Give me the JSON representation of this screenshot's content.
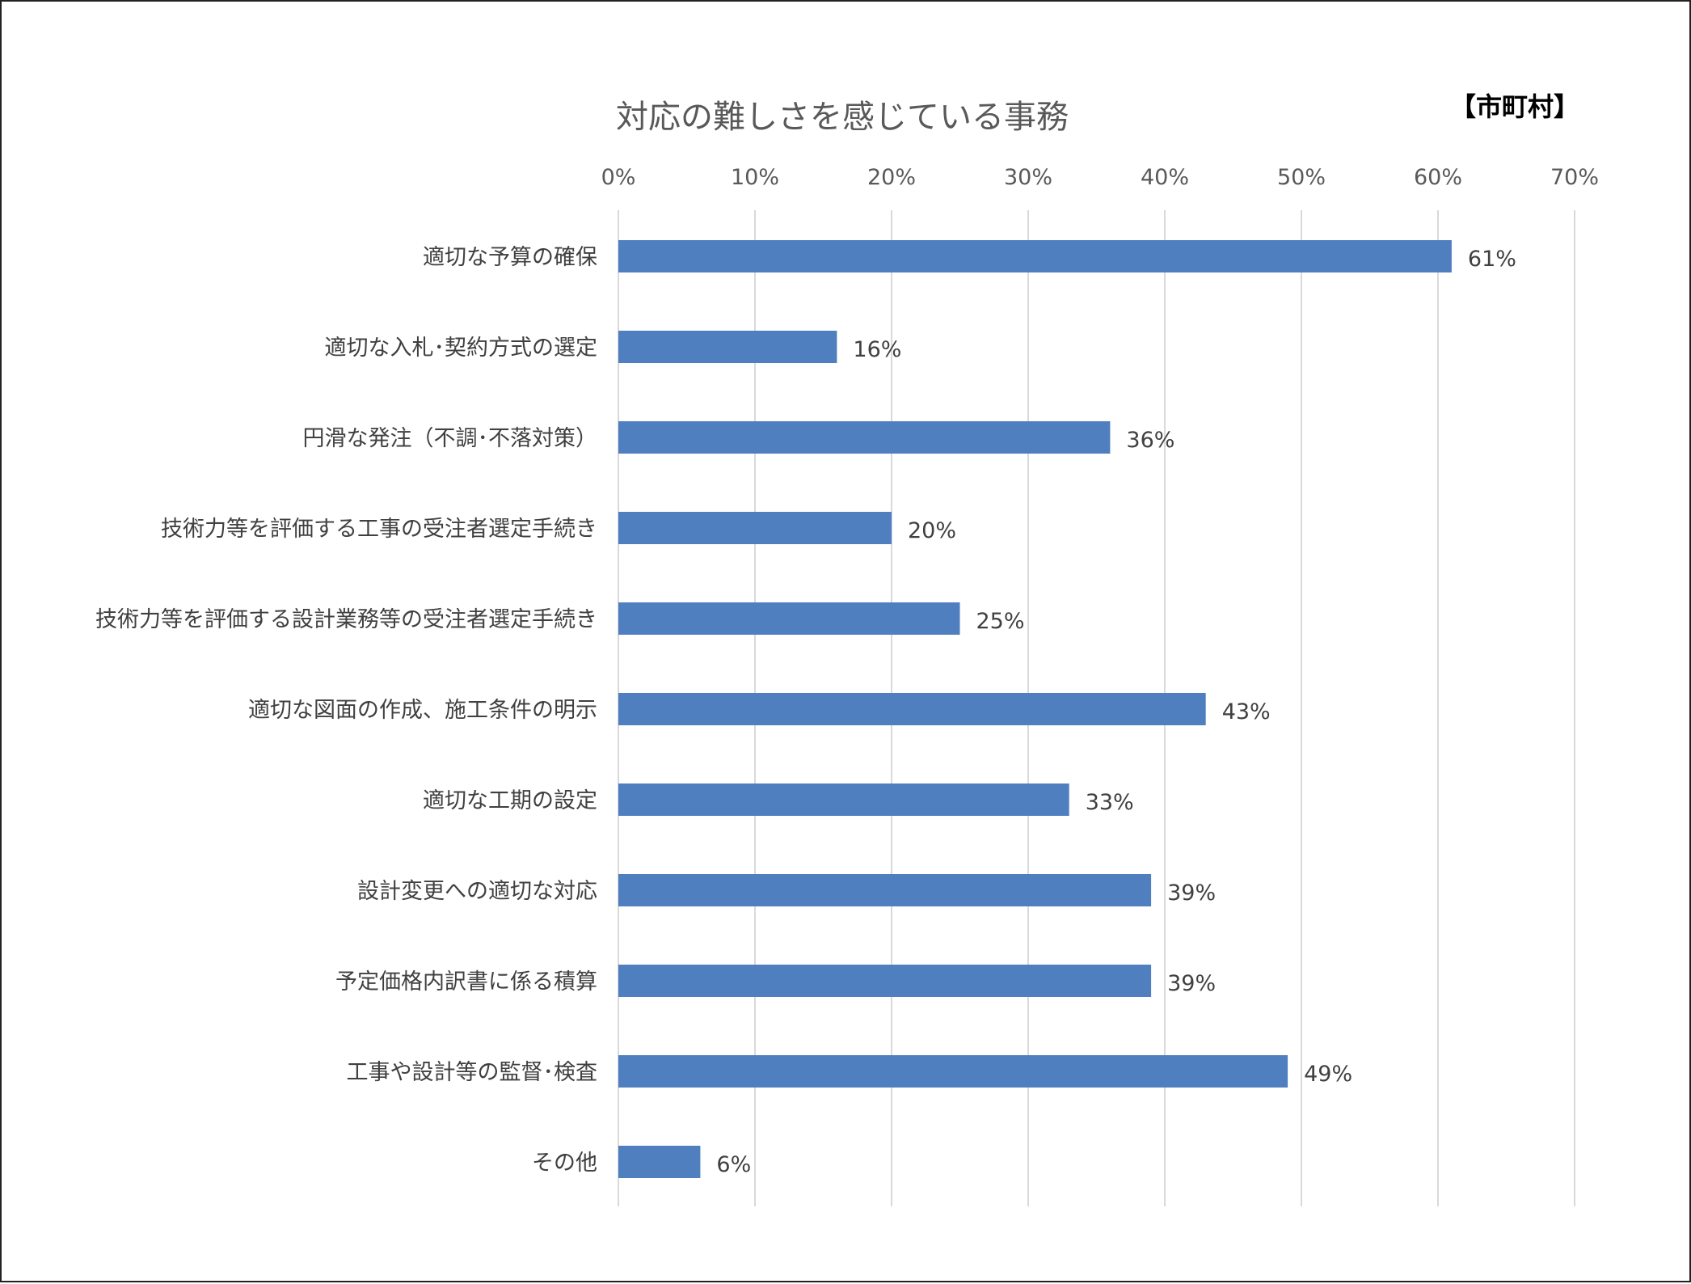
{
  "chart_data": {
    "type": "bar",
    "orientation": "horizontal",
    "title": "対応の難しさを感じている事務",
    "tag": "【市町村】",
    "categories": [
      "適切な予算の確保",
      "適切な入札･契約方式の選定",
      "円滑な発注（不調･不落対策）",
      "技術力等を評価する工事の受注者選定手続き",
      "技術力等を評価する設計業務等の受注者選定手続き",
      "適切な図面の作成、施工条件の明示",
      "適切な工期の設定",
      "設計変更への適切な対応",
      "予定価格内訳書に係る積算",
      "工事や設計等の監督･検査",
      "その他"
    ],
    "values": [
      61,
      16,
      36,
      20,
      25,
      43,
      33,
      39,
      39,
      49,
      6
    ],
    "data_labels": [
      "61%",
      "16%",
      "36%",
      "20%",
      "25%",
      "43%",
      "33%",
      "39%",
      "39%",
      "49%",
      "6%"
    ],
    "xlim": [
      0,
      70
    ],
    "x_ticks": [
      0,
      10,
      20,
      30,
      40,
      50,
      60,
      70
    ],
    "x_tick_labels": [
      "0%",
      "10%",
      "20%",
      "30%",
      "40%",
      "50%",
      "60%",
      "70%"
    ],
    "x_axis_position": "top",
    "grid": true,
    "legend": false,
    "bar_color": "#4f7fbf",
    "grid_color": "#d9d9d9"
  }
}
